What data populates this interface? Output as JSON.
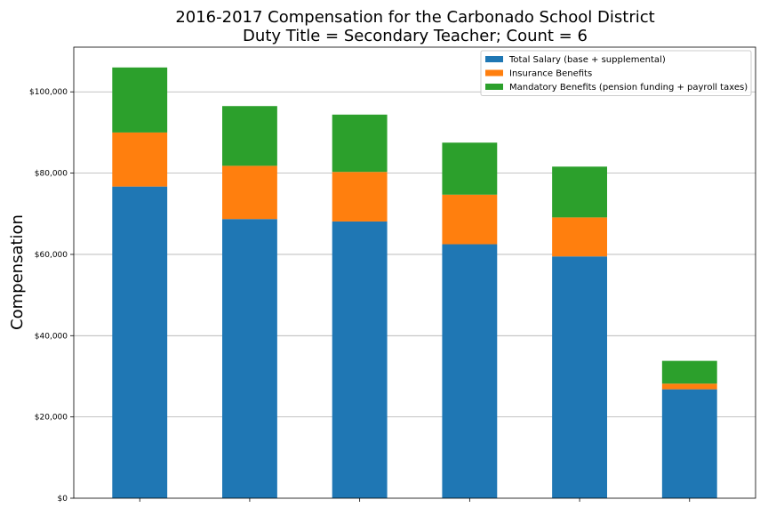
{
  "chart_data": {
    "type": "bar",
    "stacked": true,
    "title": "2016-2017 Compensation for the Carbonado School District",
    "subtitle": "Duty Title = Secondary Teacher; Count = 6",
    "xlabel": "",
    "ylabel": "Compensation",
    "ylim": [
      0,
      111000
    ],
    "yticks": [
      0,
      20000,
      40000,
      60000,
      80000,
      100000
    ],
    "ytick_labels": [
      "$0",
      "$20,000",
      "$40,000",
      "$60,000",
      "$80,000",
      "$100,000"
    ],
    "categories": [
      "",
      "",
      "",
      "",
      "",
      ""
    ],
    "grid": "horizontal",
    "legend_position": "top-right",
    "series": [
      {
        "name": "Total Salary (base + supplemental)",
        "color": "#1f77b4",
        "values": [
          76700,
          68700,
          68100,
          62500,
          59500,
          26800
        ]
      },
      {
        "name": "Insurance Benefits",
        "color": "#ff7f0e",
        "values": [
          13300,
          13100,
          12200,
          12200,
          9600,
          1400
        ]
      },
      {
        "name": "Mandatory Benefits (pension funding + payroll taxes)",
        "color": "#2ca02c",
        "values": [
          16000,
          14700,
          14100,
          12800,
          12500,
          5600
        ]
      }
    ]
  }
}
